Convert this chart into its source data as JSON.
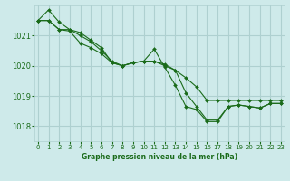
{
  "xlabel": "Graphe pression niveau de la mer (hPa)",
  "background_color": "#ceeaea",
  "grid_color": "#aed0d0",
  "line_color": "#1a6b1a",
  "x_ticks": [
    0,
    1,
    2,
    3,
    4,
    5,
    6,
    7,
    8,
    9,
    10,
    11,
    12,
    13,
    14,
    15,
    16,
    17,
    18,
    19,
    20,
    21,
    22,
    23
  ],
  "y_ticks": [
    1018,
    1019,
    1020,
    1021
  ],
  "ylim": [
    1017.5,
    1022.0
  ],
  "xlim": [
    -0.3,
    23.3
  ],
  "series": [
    [
      1021.5,
      1021.85,
      1021.45,
      1021.2,
      1021.1,
      1020.85,
      1020.6,
      1020.1,
      1020.0,
      1020.1,
      1020.15,
      1020.15,
      1020.05,
      1019.85,
      1019.6,
      1019.3,
      1018.85,
      1018.85,
      1018.85,
      1018.85,
      1018.85,
      1018.85,
      1018.85,
      1018.85
    ],
    [
      1021.5,
      1021.5,
      1021.2,
      1021.2,
      1021.0,
      1020.8,
      1020.5,
      1020.15,
      1020.0,
      1020.1,
      1020.15,
      1020.15,
      1020.0,
      1019.85,
      1019.1,
      1018.65,
      1018.2,
      1018.2,
      1018.65,
      1018.7,
      1018.65,
      1018.6,
      1018.75,
      1018.75
    ],
    [
      1021.5,
      1021.5,
      1021.2,
      1021.15,
      1020.75,
      1020.6,
      1020.4,
      1020.1,
      1020.0,
      1020.1,
      1020.15,
      1020.55,
      1019.95,
      1019.35,
      1018.65,
      1018.55,
      1018.15,
      1018.15,
      1018.65,
      1018.7,
      1018.65,
      1018.6,
      1018.75,
      1018.75
    ]
  ]
}
